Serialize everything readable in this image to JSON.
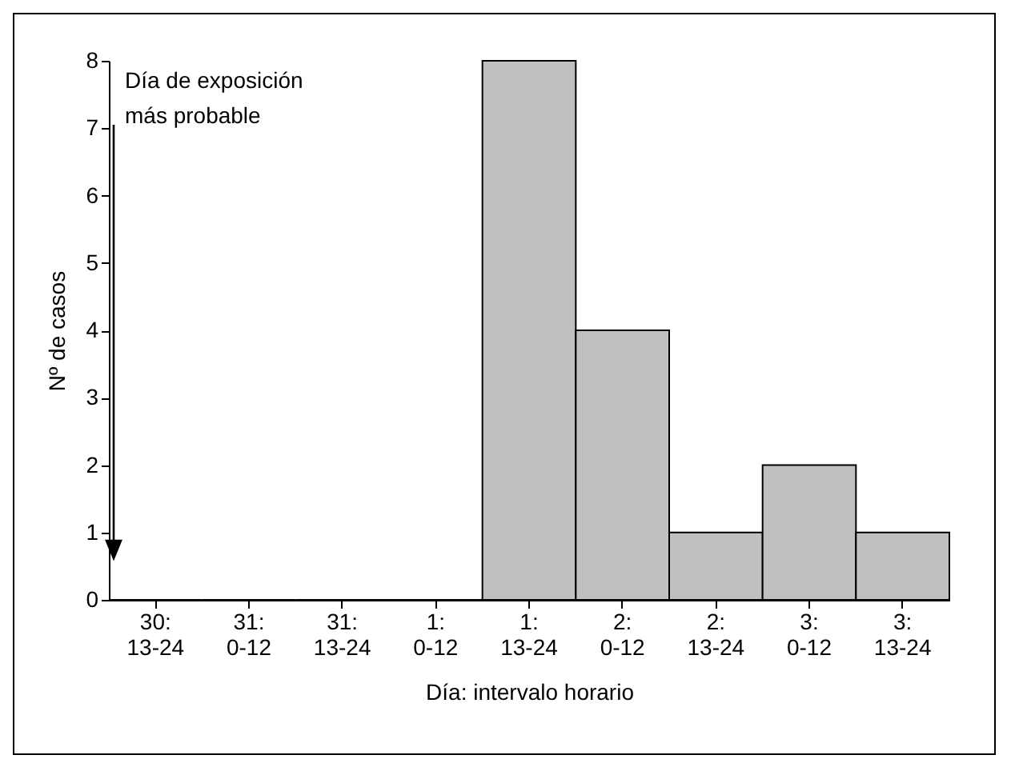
{
  "chart_data": {
    "type": "bar",
    "xlabel": "Día: intervalo horario",
    "ylabel": "Nº de casos",
    "categories": [
      "30: 13-24",
      "31: 0-12",
      "31: 13-24",
      "1: 0-12",
      "1: 13-24",
      "2: 0-12",
      "2: 13-24",
      "3: 0-12",
      "3: 13-24"
    ],
    "values": [
      0,
      0,
      0,
      0,
      8,
      4,
      1,
      2,
      1
    ],
    "color": "#c0c0c0",
    "ylim": [
      0,
      8
    ],
    "yticks": [
      0,
      1,
      2,
      3,
      4,
      5,
      6,
      7,
      8
    ],
    "grid": false,
    "annotations": [
      "Día de exposición\nmás probable"
    ]
  }
}
